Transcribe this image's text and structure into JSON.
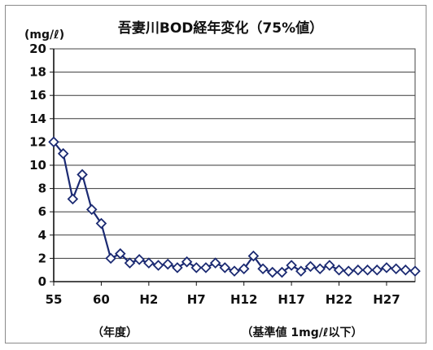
{
  "chart_data": {
    "type": "line",
    "title": "吾妻川BOD経年変化（75%値）",
    "y_unit_label": "(mg/ℓ)",
    "xlabel": "（年度）",
    "note": "（基準値 1mg/ℓ以下）",
    "ylim": [
      0,
      20
    ],
    "y_ticks": [
      "0",
      "2",
      "4",
      "6",
      "8",
      "10",
      "12",
      "14",
      "16",
      "18",
      "20"
    ],
    "x_tick_labels": [
      "55",
      "60",
      "H2",
      "H7",
      "H12",
      "H17",
      "H22",
      "H27"
    ],
    "grid": true,
    "series": [
      {
        "color": "#1b2a72",
        "marker": "diamond",
        "x": [
          "55",
          "56",
          "57",
          "58",
          "59",
          "60",
          "61",
          "62",
          "63",
          "H1",
          "H2",
          "H3",
          "H4",
          "H5",
          "H6",
          "H7",
          "H8",
          "H9",
          "H10",
          "H11",
          "H12",
          "H13",
          "H14",
          "H15",
          "H16",
          "H17",
          "H18",
          "H19",
          "H20",
          "H21",
          "H22",
          "H23",
          "H24",
          "H25",
          "H26",
          "H27",
          "H28",
          "H29",
          "H30"
        ],
        "values": [
          12.0,
          11.0,
          7.1,
          9.2,
          6.2,
          5.0,
          2.0,
          2.4,
          1.6,
          1.9,
          1.6,
          1.4,
          1.5,
          1.2,
          1.7,
          1.2,
          1.2,
          1.6,
          1.2,
          0.9,
          1.1,
          2.2,
          1.1,
          0.8,
          0.8,
          1.4,
          0.9,
          1.3,
          1.1,
          1.4,
          1.0,
          0.9,
          1.0,
          1.0,
          1.0,
          1.2,
          1.1,
          1.0,
          0.9
        ]
      }
    ]
  }
}
